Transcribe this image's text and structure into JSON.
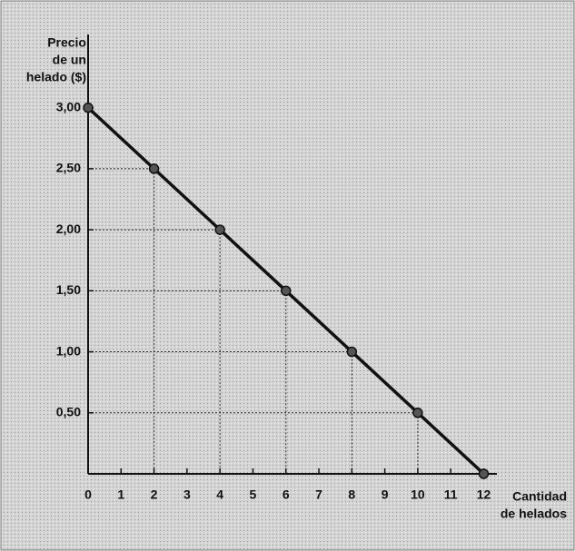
{
  "chart_data": {
    "type": "line",
    "y_label": [
      "Precio",
      "de un",
      "helado ($)"
    ],
    "x_label": [
      "Cantidad",
      "de helados"
    ],
    "x": [
      0,
      2,
      4,
      6,
      8,
      10,
      12
    ],
    "series": [
      {
        "color": "#111111",
        "values": [
          3,
          2.5,
          2,
          1.5,
          1,
          0.5,
          0
        ]
      }
    ],
    "xlim": [
      0,
      12.4
    ],
    "xticks": [
      0,
      1,
      2,
      3,
      4,
      5,
      6,
      7,
      8,
      9,
      10,
      11,
      12
    ],
    "ylim": [
      0,
      3.6
    ],
    "yticks": [
      {
        "value": 0.5,
        "label": "0,50"
      },
      {
        "value": 1,
        "label": "1,00"
      },
      {
        "value": 1.5,
        "label": "1,50"
      },
      {
        "value": 2,
        "label": "2,00"
      },
      {
        "value": 2.5,
        "label": "2,50"
      },
      {
        "value": 3,
        "label": "3,00"
      }
    ],
    "drop_lines": true
  }
}
